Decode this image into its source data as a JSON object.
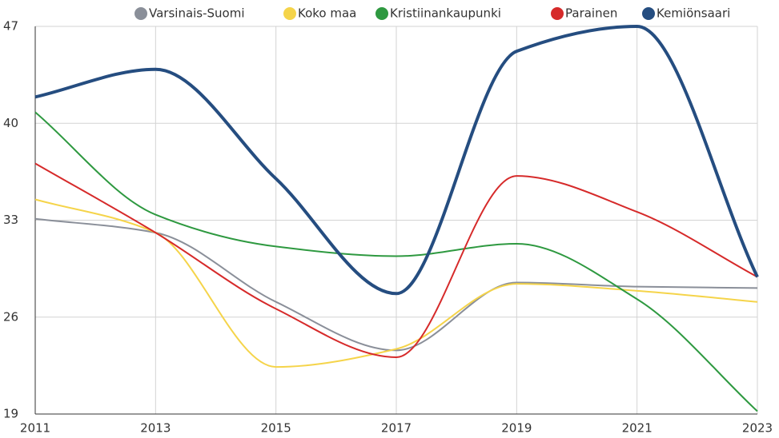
{
  "chart_data": {
    "type": "line",
    "x": [
      2011,
      2013,
      2015,
      2017,
      2019,
      2021,
      2023
    ],
    "xlim": [
      2011,
      2023
    ],
    "xticks": [
      2011,
      2013,
      2015,
      2017,
      2019,
      2021,
      2023
    ],
    "ylim": [
      19,
      47
    ],
    "yticks": [
      19,
      26,
      33,
      40,
      47
    ],
    "grid": true,
    "legend": "top",
    "series": [
      {
        "name": "Varsinais-Suomi",
        "color": "#8a8f99",
        "values": [
          33.1,
          32.1,
          27.1,
          23.6,
          28.5,
          28.2,
          28.1
        ]
      },
      {
        "name": "Koko maa",
        "color": "#f5d44a",
        "values": [
          34.5,
          32.1,
          22.4,
          23.7,
          28.4,
          27.9,
          27.1
        ]
      },
      {
        "name": "Kristiinankaupunki",
        "color": "#2e9940",
        "values": [
          40.8,
          33.4,
          31.1,
          30.4,
          31.3,
          27.3,
          19.2
        ]
      },
      {
        "name": "Parainen",
        "color": "#d62a2a",
        "values": [
          37.1,
          32.1,
          26.6,
          23.1,
          36.2,
          33.6,
          28.9
        ]
      },
      {
        "name": "Kemiönsaari",
        "color": "#254d80",
        "values": [
          41.9,
          43.9,
          36.0,
          27.7,
          45.2,
          47.0,
          28.9
        ]
      }
    ]
  }
}
